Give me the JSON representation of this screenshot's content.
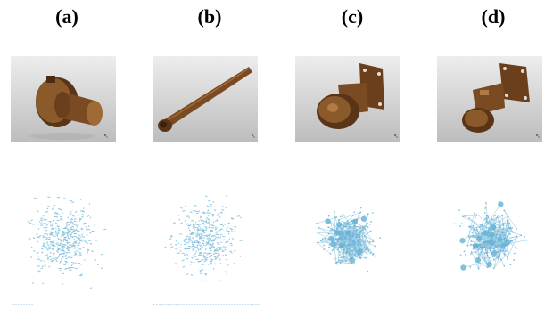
{
  "panels": [
    {
      "label": "(a)",
      "object": "flanged bushing",
      "graph_style": "sparse-scatter"
    },
    {
      "label": "(b)",
      "object": "bolt rod",
      "graph_style": "sparse-scatter"
    },
    {
      "label": "(c)",
      "object": "swivel caster wheel",
      "graph_style": "dense-network"
    },
    {
      "label": "(d)",
      "object": "swivel caster wheel (rotated)",
      "graph_style": "dense-network"
    }
  ],
  "colors": {
    "part_dark": "#5a3417",
    "part_mid": "#8b5a2b",
    "part_light": "#b07a44",
    "graph_edge": "#8ec5e0",
    "graph_node": "#66b2d6"
  }
}
